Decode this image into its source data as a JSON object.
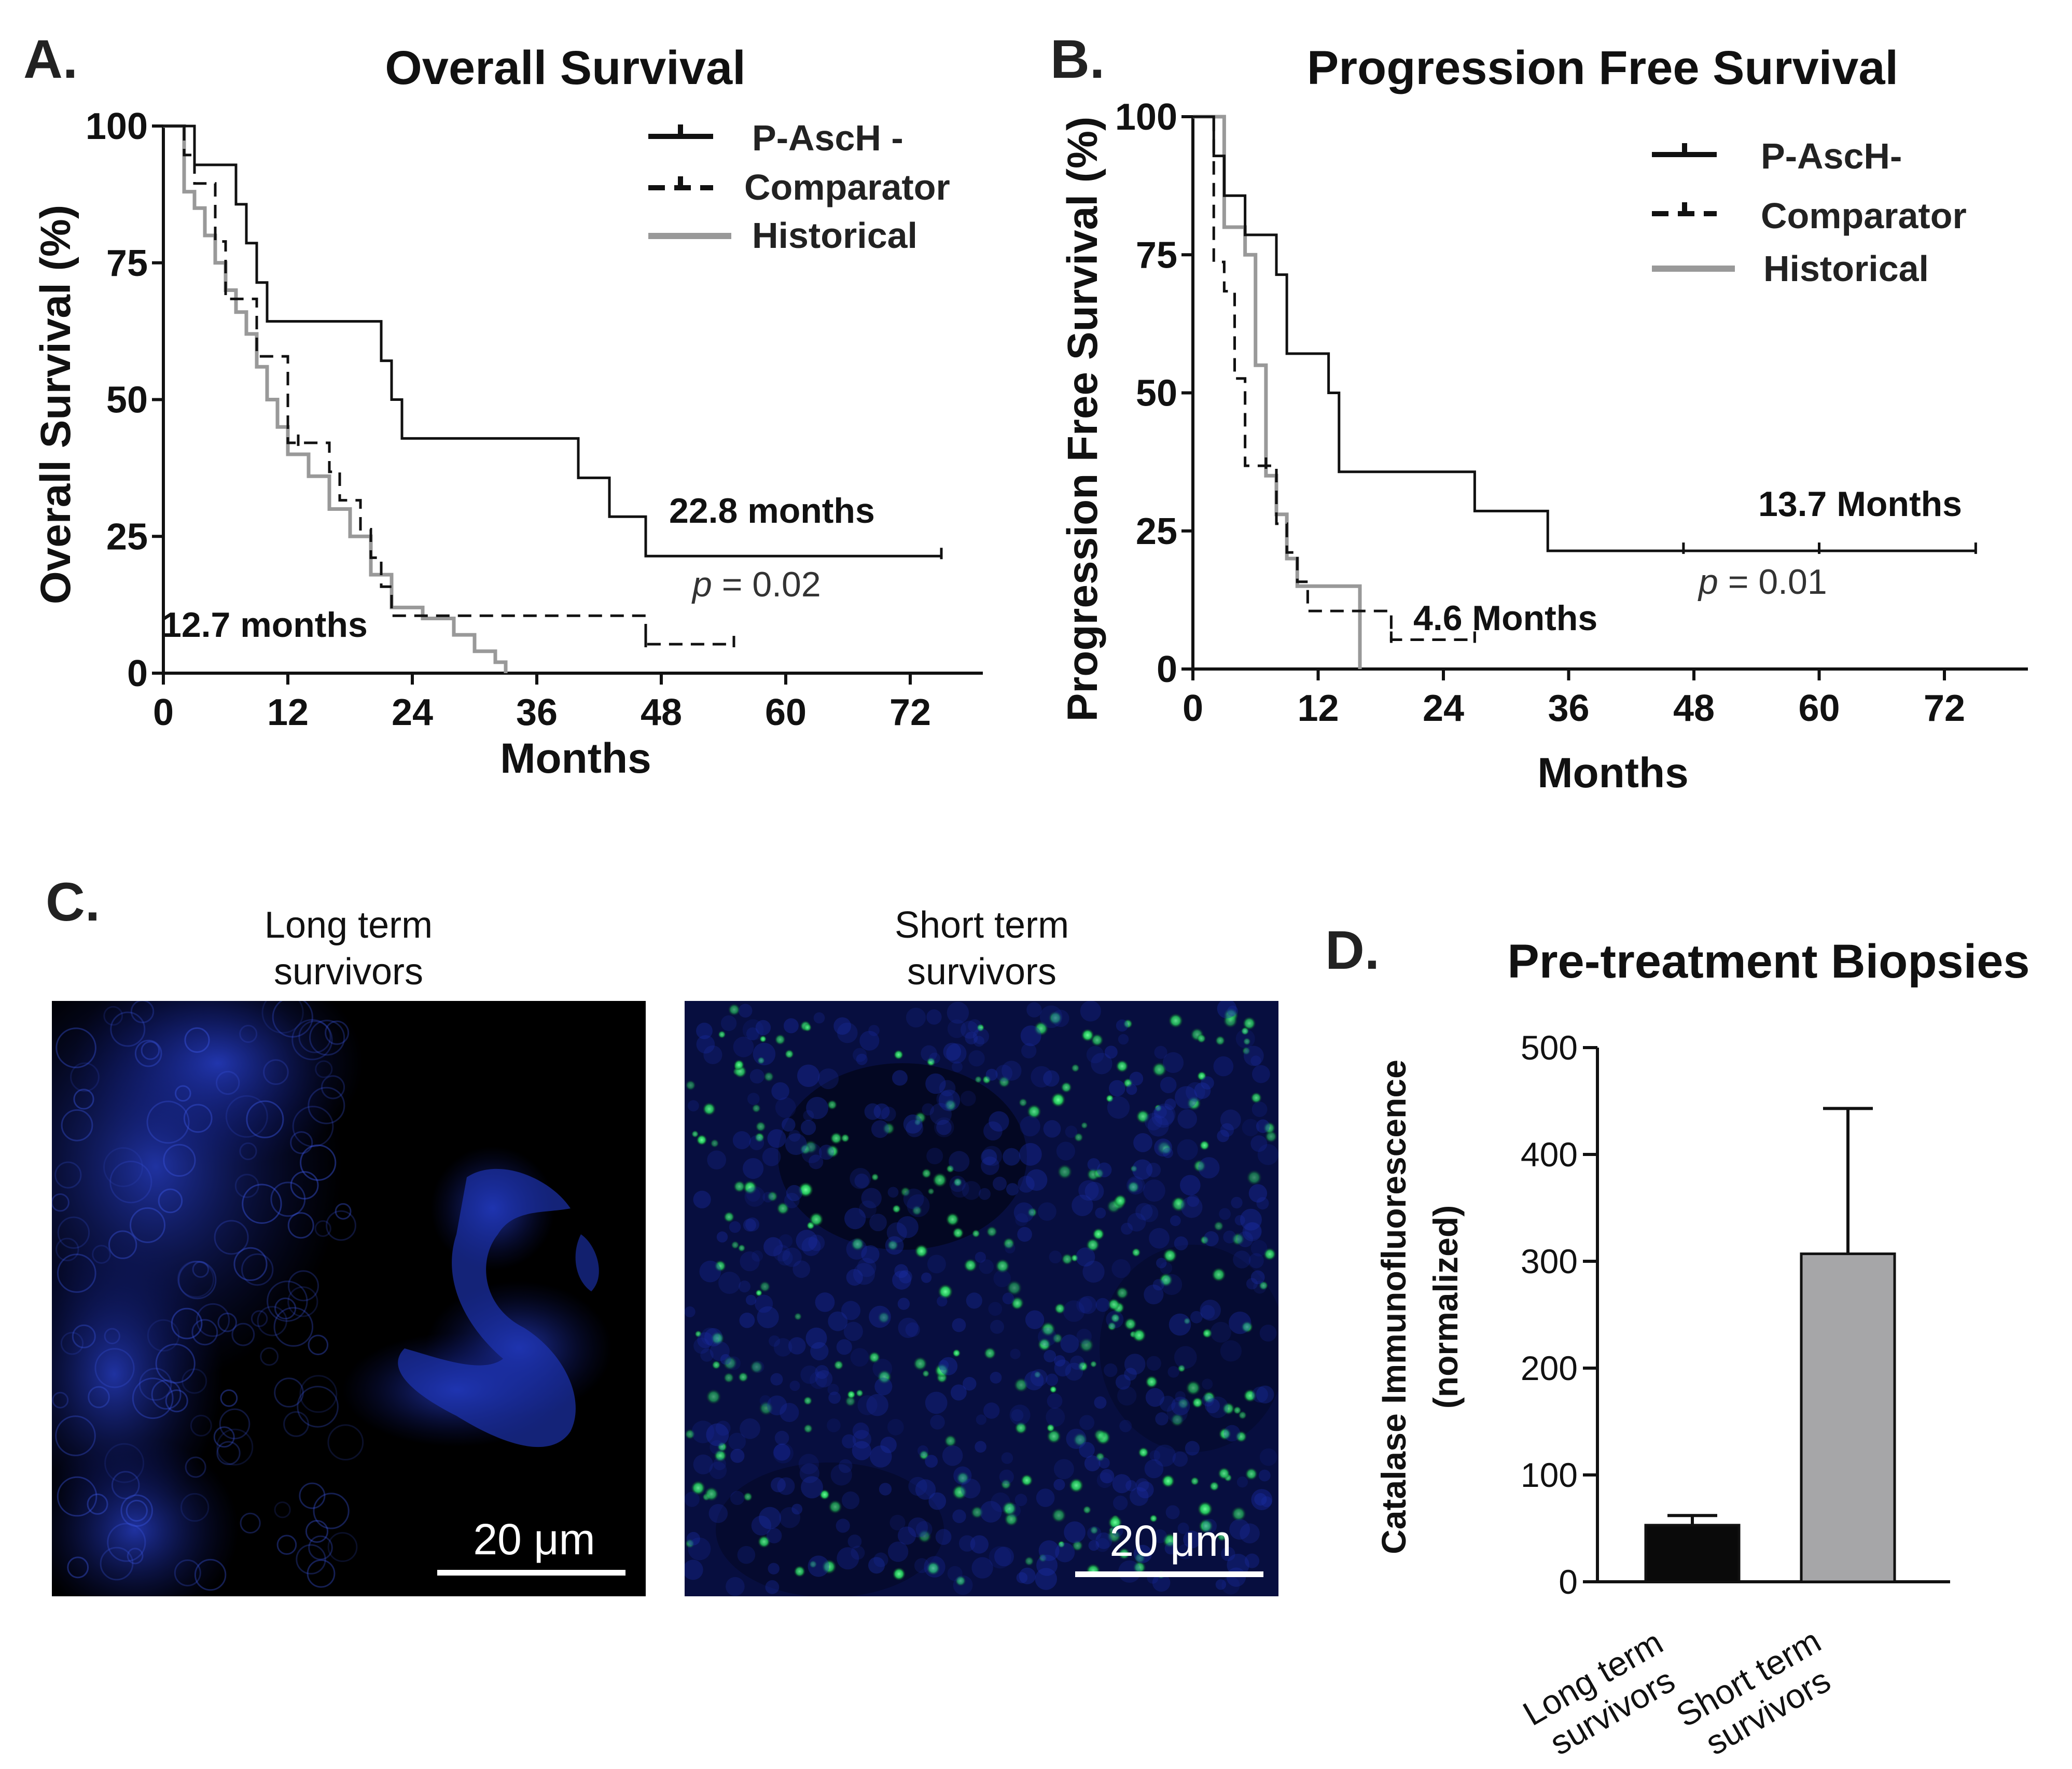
{
  "colors": {
    "p_asch": "#111111",
    "comparator": "#111111",
    "historical": "#999999",
    "bar_long": "#0a0a0a",
    "bar_short": "#a6a6a8",
    "image_bg": "#000000",
    "nuclei": "#1a2fb8",
    "catalase": "#2ee86a"
  },
  "panels": {
    "a": {
      "letter": "A."
    },
    "b": {
      "letter": "B."
    },
    "c": {
      "letter": "C.",
      "image_long_title_line1": "Long term",
      "image_long_title_line2": "survivors",
      "image_short_title_line1": "Short term",
      "image_short_title_line2": "survivors",
      "scale_bar_label": "20 μm"
    },
    "d": {
      "letter": "D."
    }
  },
  "chart_data": [
    {
      "id": "overall-survival",
      "type": "line",
      "title": "Overall  Survival",
      "xlabel": "Months",
      "ylabel": "Overall Survival (%)",
      "xlim": [
        0,
        79
      ],
      "ylim": [
        0,
        100
      ],
      "xticks": [
        0,
        12,
        24,
        36,
        48,
        60,
        72
      ],
      "yticks": [
        0,
        25,
        50,
        75,
        100
      ],
      "grid": false,
      "legend": "top-right",
      "series": [
        {
          "name": "P-AscH -",
          "style": "solid",
          "x": [
            0,
            3,
            7,
            8,
            9,
            10,
            21,
            22,
            23,
            40,
            43,
            46.5,
            75
          ],
          "y": [
            100,
            92.9,
            85.7,
            78.6,
            71.4,
            64.3,
            57.1,
            50,
            42.9,
            35.7,
            28.6,
            21.4,
            21.4
          ],
          "censored_x": [
            75
          ]
        },
        {
          "name": "Comparator",
          "style": "dashed",
          "x": [
            0,
            2,
            3,
            5,
            6,
            9,
            12,
            13,
            16,
            17,
            19,
            20,
            21,
            22,
            46.5,
            55
          ],
          "y": [
            100,
            94.7,
            89.5,
            78.9,
            68.4,
            57.9,
            42.1,
            42.1,
            36.8,
            31.6,
            26.3,
            21.1,
            15.8,
            10.5,
            5.3,
            5.3
          ],
          "censored_x": [
            13,
            46.5,
            55
          ]
        },
        {
          "name": "Historical",
          "style": "solid",
          "x": [
            0,
            2,
            3,
            4,
            5,
            6,
            7,
            8,
            9,
            10,
            11,
            12,
            14,
            16,
            18,
            20,
            22,
            25,
            28,
            30,
            32,
            33
          ],
          "y": [
            100,
            88,
            85,
            80,
            75,
            70,
            66,
            62,
            56,
            50,
            45,
            40,
            36,
            30,
            25,
            18,
            12,
            10,
            7,
            4,
            2,
            0
          ],
          "censored_x": []
        }
      ],
      "annotations": [
        {
          "text": "22.8 months",
          "x": 49,
          "y": 29
        },
        {
          "text": "12.7  months",
          "x": 0,
          "y": 8
        }
      ],
      "p_prefix": "p",
      "p_value": " = 0.02"
    },
    {
      "id": "progression-free-survival",
      "type": "line",
      "title": "Progression  Free Survival",
      "xlabel": "Months",
      "ylabel": "Progression Free Survival (%)",
      "xlim": [
        0,
        80
      ],
      "ylim": [
        0,
        100
      ],
      "xticks": [
        0,
        12,
        24,
        36,
        48,
        60,
        72
      ],
      "yticks": [
        0,
        25,
        50,
        75,
        100
      ],
      "grid": false,
      "legend": "top-right",
      "series": [
        {
          "name": "P-AscH-",
          "style": "solid",
          "x": [
            0,
            2,
            3,
            4,
            5,
            6,
            8,
            9,
            13,
            14,
            27,
            34,
            75
          ],
          "y": [
            100,
            92.9,
            85.7,
            85.7,
            78.6,
            78.6,
            71.4,
            57.1,
            50,
            35.7,
            28.6,
            21.4,
            21.4
          ],
          "censored_x": [
            47,
            60,
            75
          ]
        },
        {
          "name": "Comparator",
          "style": "dashed",
          "x": [
            0,
            2,
            3,
            4,
            5,
            7,
            8,
            9,
            10,
            11,
            19,
            27
          ],
          "y": [
            100,
            73.7,
            68.4,
            52.6,
            36.8,
            36.8,
            26.3,
            21.1,
            15.8,
            10.5,
            5.3,
            5.3
          ],
          "censored_x": [
            7,
            19,
            27
          ]
        },
        {
          "name": "Historical",
          "style": "solid",
          "x": [
            0,
            3,
            5,
            6,
            7,
            8,
            9,
            10,
            12,
            16
          ],
          "y": [
            100,
            80,
            75,
            55,
            35,
            28,
            20,
            15,
            15,
            0
          ],
          "censored_x": []
        }
      ],
      "annotations": [
        {
          "text": "13.7 Months",
          "x": 54,
          "y": 29
        },
        {
          "text": "4.6 Months",
          "x": 21,
          "y": 7
        }
      ],
      "p_prefix": "p",
      "p_value": " = 0.01"
    },
    {
      "id": "pre-treatment-biopsies",
      "type": "bar",
      "title": "Pre-treatment Biopsies",
      "ylabel_line1": "Catalase Immunofluorescence",
      "ylabel_line2": "(normalized)",
      "categories": [
        {
          "line1": "Long term",
          "line2": "survivors"
        },
        {
          "line1": "Short term",
          "line2": "survivors"
        }
      ],
      "values": [
        53,
        307
      ],
      "error_upper": [
        62,
        443
      ],
      "ylim": [
        0,
        500
      ],
      "yticks": [
        0,
        100,
        200,
        300,
        400,
        500
      ]
    }
  ]
}
